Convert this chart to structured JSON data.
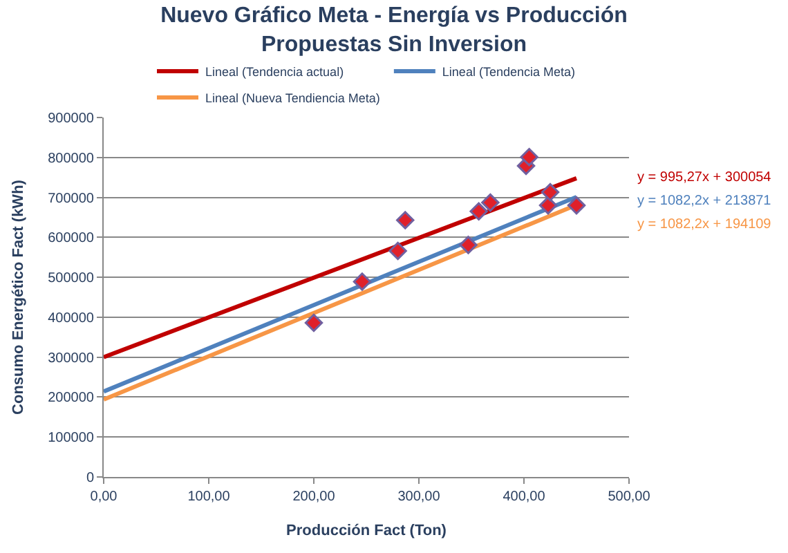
{
  "chart_data": {
    "type": "scatter",
    "title": "Nuevo Gráfico Meta - Energía vs Producción\nPropuestas Sin Inversion",
    "xlabel": "Producción Fact (Ton)",
    "ylabel": "Consumo Energético Fact (kWh)",
    "xlim": [
      0,
      500
    ],
    "xticks": [
      {
        "value": 0,
        "label": "0,00"
      },
      {
        "value": 100,
        "label": "100,00"
      },
      {
        "value": 200,
        "label": "200,00"
      },
      {
        "value": 300,
        "label": "300,00"
      },
      {
        "value": 400,
        "label": "400,00"
      },
      {
        "value": 500,
        "label": "500,00"
      }
    ],
    "ylim": [
      0,
      900000
    ],
    "yticks": [
      0,
      100000,
      200000,
      300000,
      400000,
      500000,
      600000,
      700000,
      800000,
      900000
    ],
    "grid": "y",
    "legend": "top",
    "series": [
      {
        "marker": "diamond",
        "color": "#e0202a",
        "x": [
          200,
          246,
          280,
          287,
          347,
          357,
          368,
          402,
          405,
          423,
          425,
          450
        ],
        "values": [
          386000,
          489000,
          566000,
          643000,
          581000,
          665000,
          687000,
          779000,
          801000,
          680000,
          713000,
          680000
        ]
      },
      {
        "type": "line",
        "name": "Lineal (Tendencia actual)",
        "color": "#c00000",
        "x": [
          0,
          450
        ],
        "values": [
          300000,
          748000
        ]
      },
      {
        "type": "line",
        "name": "Lineal (Tendencia Meta)",
        "color": "#4f81bd",
        "x": [
          0,
          450
        ],
        "values": [
          214000,
          701000
        ]
      },
      {
        "type": "line",
        "name": "Lineal (Nueva Tendiencia Meta)",
        "color": "#f79646",
        "x": [
          0,
          450
        ],
        "values": [
          194000,
          681000
        ]
      }
    ],
    "annotations": [
      "y = 995,27x + 300054",
      "y = 1082,2x + 213871",
      "y = 1082,2x + 194109"
    ]
  }
}
